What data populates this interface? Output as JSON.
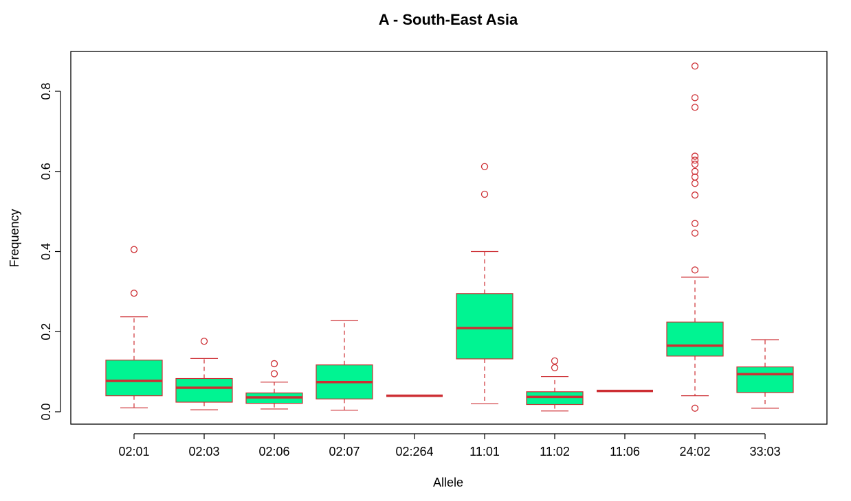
{
  "chart_data": {
    "type": "boxplot",
    "title": "A - South-East Asia",
    "xlabel": "Allele",
    "ylabel": "Frequency",
    "ylim": [
      -0.03,
      0.9
    ],
    "yticks": [
      0.0,
      0.2,
      0.4,
      0.6,
      0.8
    ],
    "ytick_labels": [
      "0.0",
      "0.2",
      "0.4",
      "0.6",
      "0.8"
    ],
    "grid": false,
    "colors": {
      "box_fill": "#00f492",
      "median": "#cd2e33",
      "outline": "#cd2e33",
      "frame": "#000000"
    },
    "categories": [
      "02:01",
      "02:03",
      "02:06",
      "02:07",
      "02:264",
      "11:01",
      "11:02",
      "11:06",
      "24:02",
      "33:03"
    ],
    "boxes": [
      {
        "label": "02:01",
        "whisker_low": 0.01,
        "q1": 0.04,
        "median": 0.077,
        "q3": 0.129,
        "whisker_high": 0.237,
        "outliers": [
          0.296,
          0.405
        ]
      },
      {
        "label": "02:03",
        "whisker_low": 0.005,
        "q1": 0.024,
        "median": 0.06,
        "q3": 0.083,
        "whisker_high": 0.133,
        "outliers": [
          0.176
        ]
      },
      {
        "label": "02:06",
        "whisker_low": 0.007,
        "q1": 0.021,
        "median": 0.036,
        "q3": 0.047,
        "whisker_high": 0.074,
        "outliers": [
          0.095,
          0.12
        ]
      },
      {
        "label": "02:07",
        "whisker_low": 0.004,
        "q1": 0.032,
        "median": 0.074,
        "q3": 0.117,
        "whisker_high": 0.228,
        "outliers": []
      },
      {
        "label": "02:264",
        "whisker_low": 0.04,
        "q1": 0.04,
        "median": 0.04,
        "q3": 0.04,
        "whisker_high": 0.04,
        "outliers": []
      },
      {
        "label": "11:01",
        "whisker_low": 0.02,
        "q1": 0.132,
        "median": 0.209,
        "q3": 0.295,
        "whisker_high": 0.4,
        "outliers": [
          0.543,
          0.612
        ]
      },
      {
        "label": "11:02",
        "whisker_low": 0.002,
        "q1": 0.018,
        "median": 0.037,
        "q3": 0.05,
        "whisker_high": 0.088,
        "outliers": [
          0.11,
          0.127
        ]
      },
      {
        "label": "11:06",
        "whisker_low": 0.052,
        "q1": 0.052,
        "median": 0.052,
        "q3": 0.052,
        "whisker_high": 0.052,
        "outliers": []
      },
      {
        "label": "24:02",
        "whisker_low": 0.04,
        "q1": 0.139,
        "median": 0.165,
        "q3": 0.224,
        "whisker_high": 0.336,
        "outliers": [
          0.009,
          0.354,
          0.446,
          0.47,
          0.541,
          0.57,
          0.586,
          0.6,
          0.618,
          0.628,
          0.638,
          0.76,
          0.784,
          0.863
        ]
      },
      {
        "label": "33:03",
        "whisker_low": 0.009,
        "q1": 0.048,
        "median": 0.094,
        "q3": 0.112,
        "whisker_high": 0.18,
        "outliers": []
      }
    ]
  }
}
